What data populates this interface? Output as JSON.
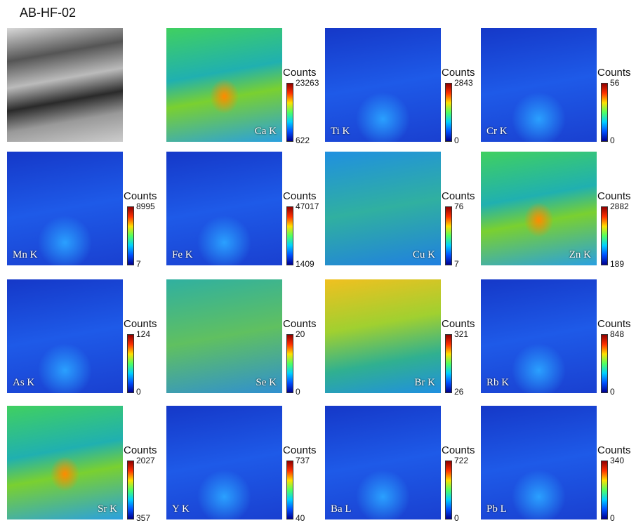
{
  "title": "AB-HF-02",
  "panels": [
    {
      "element": "Ca K",
      "colorbar_label": "Counts",
      "max": 23263,
      "min": 622
    },
    {
      "element": "Ti K",
      "colorbar_label": "Counts",
      "max": 2843,
      "min": 0
    },
    {
      "element": "Cr K",
      "colorbar_label": "Counts",
      "max": 56,
      "min": 0
    },
    {
      "element": "Mn K",
      "colorbar_label": "Counts",
      "max": 8995,
      "min": 7
    },
    {
      "element": "Fe K",
      "colorbar_label": "Counts",
      "max": 47017,
      "min": 1409
    },
    {
      "element": "Cu K",
      "colorbar_label": "Counts",
      "max": 76,
      "min": 7
    },
    {
      "element": "Zn K",
      "colorbar_label": "Counts",
      "max": 2882,
      "min": 189
    },
    {
      "element": "As K",
      "colorbar_label": "Counts",
      "max": 124,
      "min": 0
    },
    {
      "element": "Se K",
      "colorbar_label": "Counts",
      "max": 20,
      "min": 0
    },
    {
      "element": "Br K",
      "colorbar_label": "Counts",
      "max": 321,
      "min": 26
    },
    {
      "element": "Rb K",
      "colorbar_label": "Counts",
      "max": 848,
      "min": 0
    },
    {
      "element": "Sr K",
      "colorbar_label": "Counts",
      "max": 2027,
      "min": 357
    },
    {
      "element": "Y K",
      "colorbar_label": "Counts",
      "max": 737,
      "min": 40
    },
    {
      "element": "Ba L",
      "colorbar_label": "Counts",
      "max": 722,
      "min": 0
    },
    {
      "element": "Pb L",
      "colorbar_label": "Counts",
      "max": 340,
      "min": 0
    }
  ]
}
